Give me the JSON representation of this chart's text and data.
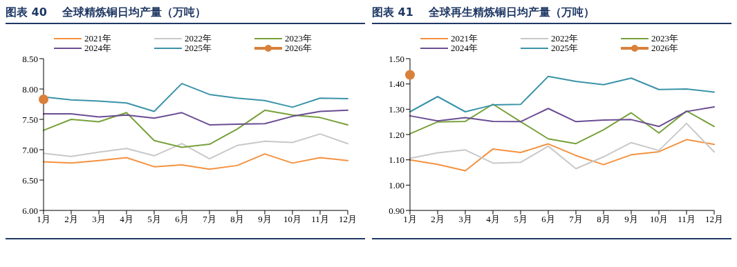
{
  "chart_data": [
    {
      "type": "line",
      "title": "图表 40    全球精炼铜日均产量（万吨）",
      "categories": [
        "1月",
        "2月",
        "3月",
        "4月",
        "5月",
        "6月",
        "7月",
        "8月",
        "9月",
        "10月",
        "11月",
        "12月"
      ],
      "ylim": [
        6,
        8.5
      ],
      "yticks": [
        {
          "value": 6,
          "label": "6.00"
        },
        {
          "value": 6.5,
          "label": "6.50"
        },
        {
          "value": 7,
          "label": "7.00"
        },
        {
          "value": 7.5,
          "label": "7.50"
        },
        {
          "value": 8,
          "label": "8.00"
        },
        {
          "value": 8.5,
          "label": "8.50"
        }
      ],
      "grid": false,
      "legend": "top",
      "line_style": "solid",
      "series": [
        {
          "name": "2021年",
          "color": "#f4913f",
          "marker": "none",
          "values": [
            6.8,
            6.78,
            6.82,
            6.87,
            6.72,
            6.75,
            6.68,
            6.74,
            6.93,
            6.78,
            6.87,
            6.82
          ]
        },
        {
          "name": "2022年",
          "color": "#c8c8c8",
          "marker": "none",
          "values": [
            6.94,
            6.89,
            6.96,
            7.02,
            6.9,
            7.1,
            6.85,
            7.07,
            7.14,
            7.12,
            7.26,
            7.1
          ]
        },
        {
          "name": "2023年",
          "color": "#77a03a",
          "marker": "none",
          "values": [
            7.32,
            7.5,
            7.46,
            7.61,
            7.15,
            7.04,
            7.09,
            7.34,
            7.65,
            7.57,
            7.53,
            7.41
          ]
        },
        {
          "name": "2024年",
          "color": "#6a4c93",
          "marker": "none",
          "values": [
            7.59,
            7.59,
            7.54,
            7.57,
            7.52,
            7.61,
            7.41,
            7.42,
            7.43,
            7.55,
            7.63,
            7.65
          ]
        },
        {
          "name": "2025年",
          "color": "#3a93a8",
          "marker": "none",
          "values": [
            7.87,
            7.82,
            7.8,
            7.77,
            7.63,
            8.09,
            7.91,
            7.85,
            7.81,
            7.7,
            7.85,
            7.84
          ]
        },
        {
          "name": "2026年",
          "color": "#d9803a",
          "marker": "circle",
          "values": [
            7.83,
            null,
            null,
            null,
            null,
            null,
            null,
            null,
            null,
            null,
            null,
            null
          ]
        }
      ]
    },
    {
      "type": "line",
      "title": "图表 41    全球再生精炼铜日均产量（万吨）",
      "categories": [
        "1月",
        "2月",
        "3月",
        "4月",
        "5月",
        "6月",
        "7月",
        "8月",
        "9月",
        "10月",
        "11月",
        "12月"
      ],
      "ylim": [
        0.9,
        1.5
      ],
      "yticks": [
        {
          "value": 0.9,
          "label": "0.90"
        },
        {
          "value": 1.0,
          "label": "1.00"
        },
        {
          "value": 1.1,
          "label": "1.10"
        },
        {
          "value": 1.2,
          "label": "1.20"
        },
        {
          "value": 1.3,
          "label": "1.30"
        },
        {
          "value": 1.4,
          "label": "1.40"
        },
        {
          "value": 1.5,
          "label": "1.50"
        }
      ],
      "grid": false,
      "legend": "top",
      "line_style": "solid",
      "series": [
        {
          "name": "2021年",
          "color": "#f4913f",
          "marker": "none",
          "values": [
            1.1,
            1.082,
            1.057,
            1.143,
            1.129,
            1.163,
            1.117,
            1.081,
            1.12,
            1.132,
            1.18,
            1.161
          ]
        },
        {
          "name": "2022年",
          "color": "#c8c8c8",
          "marker": "none",
          "values": [
            1.106,
            1.128,
            1.139,
            1.087,
            1.09,
            1.154,
            1.065,
            1.112,
            1.168,
            1.137,
            1.244,
            1.131
          ]
        },
        {
          "name": "2023年",
          "color": "#77a03a",
          "marker": "none",
          "values": [
            1.203,
            1.25,
            1.252,
            1.32,
            1.251,
            1.183,
            1.164,
            1.219,
            1.286,
            1.206,
            1.293,
            1.232
          ]
        },
        {
          "name": "2024年",
          "color": "#6a4c93",
          "marker": "none",
          "values": [
            1.274,
            1.254,
            1.267,
            1.252,
            1.251,
            1.303,
            1.251,
            1.257,
            1.259,
            1.232,
            1.291,
            1.309
          ]
        },
        {
          "name": "2025年",
          "color": "#3a93a8",
          "marker": "none",
          "values": [
            1.29,
            1.35,
            1.29,
            1.317,
            1.319,
            1.43,
            1.41,
            1.397,
            1.423,
            1.378,
            1.38,
            1.368
          ]
        },
        {
          "name": "2026年",
          "color": "#d9803a",
          "marker": "circle",
          "values": [
            1.436,
            null,
            null,
            null,
            null,
            null,
            null,
            null,
            null,
            null,
            null,
            null
          ]
        }
      ]
    }
  ]
}
